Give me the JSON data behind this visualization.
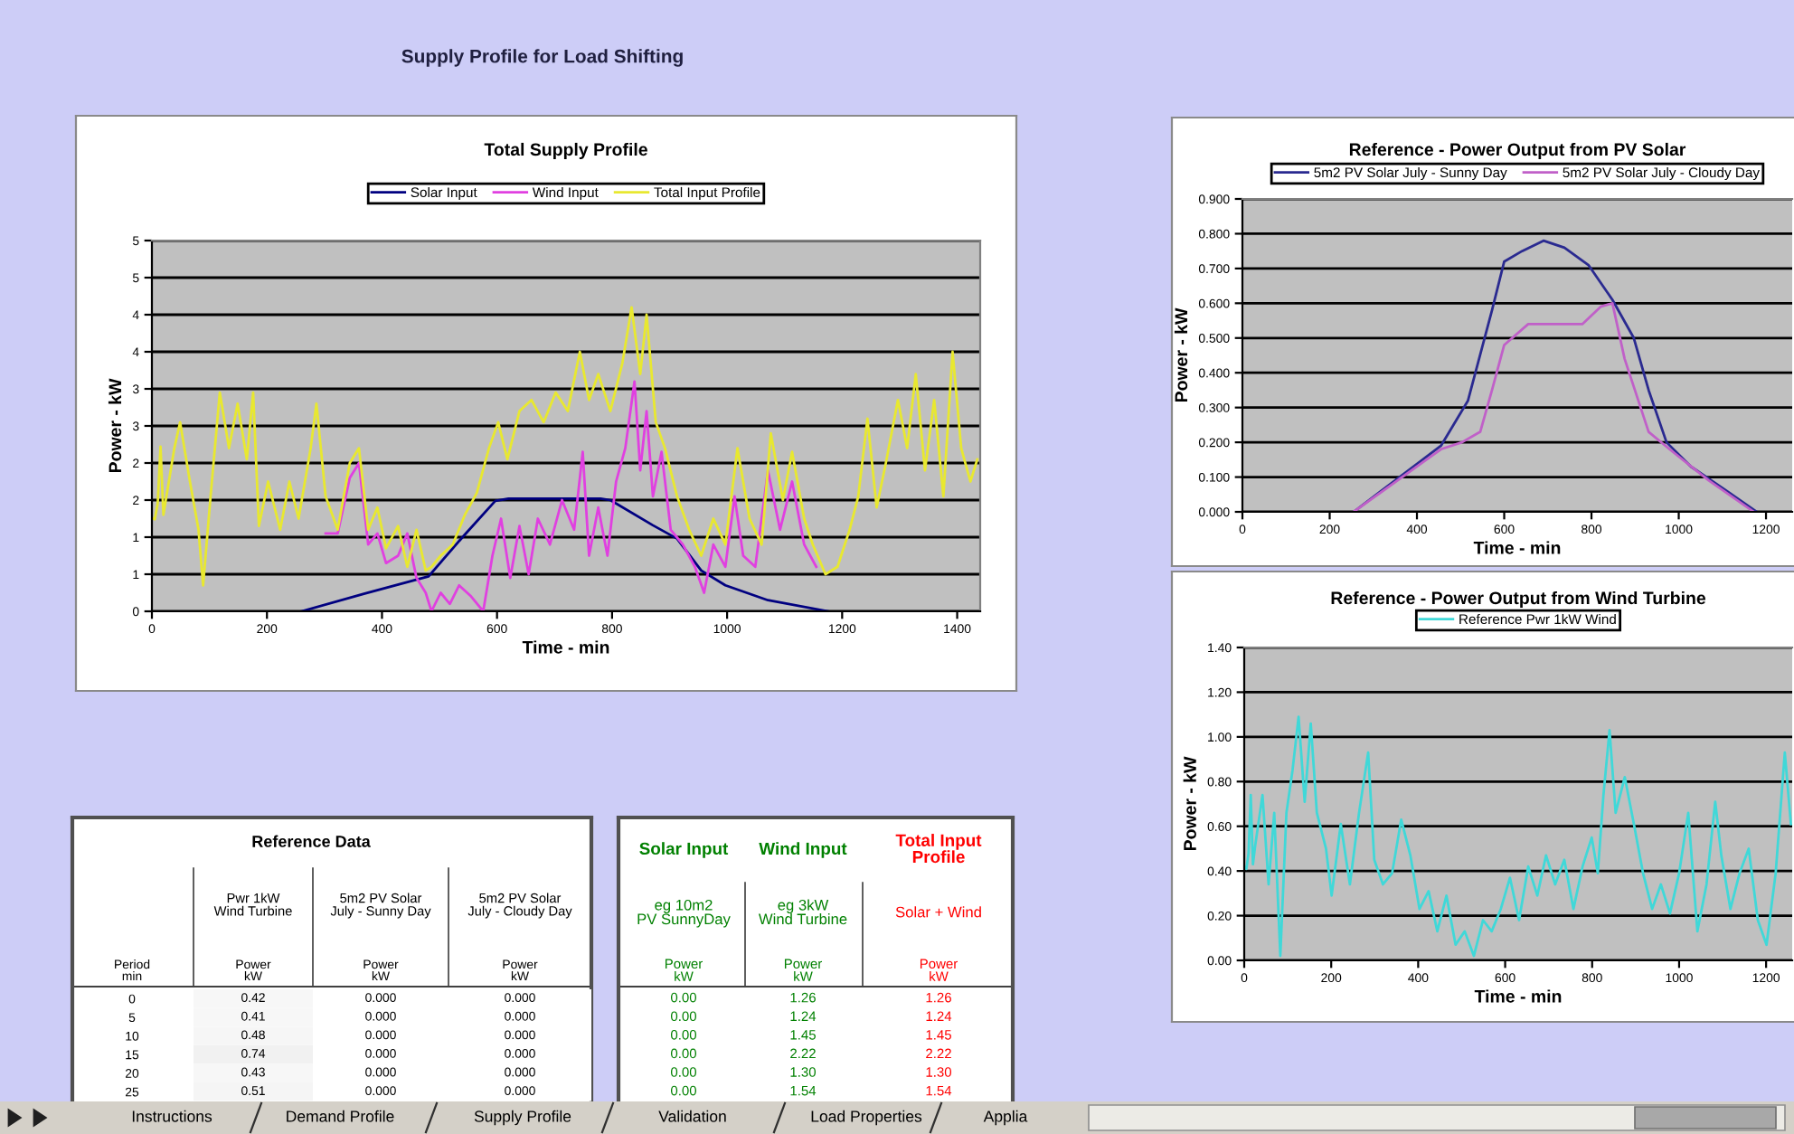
{
  "chart_data": [
    {
      "type": "other",
      "title": "Supply Profile for Load Shifting"
    },
    {
      "type": "line",
      "title": "Total Supply Profile",
      "xlabel": "Time - min",
      "ylabel": "Power - kW",
      "xlim": [
        0,
        1440
      ],
      "xticks": [
        0,
        200,
        400,
        600,
        800,
        1000,
        1200,
        1400
      ],
      "ylim": [
        0,
        5
      ],
      "yticks": [
        0,
        {
          "value": 0.5,
          "label": "1"
        },
        1,
        {
          "value": 1.5,
          "label": "2"
        },
        2,
        {
          "value": 2.5,
          "label": "3"
        },
        3,
        {
          "value": 3.5,
          "label": "4"
        },
        4,
        {
          "value": 4.5,
          "label": "5"
        },
        5
      ],
      "grid": "y",
      "legend": "top",
      "series": [
        {
          "name": "Solar Input",
          "color": "#000080",
          "x": [
            260,
            370,
            481,
            540,
            597,
            620,
            780,
            797,
            871,
            913,
            955,
            997,
            1071,
            1176
          ],
          "values": [
            0,
            0.24,
            0.47,
            1.0,
            1.49,
            1.52,
            1.52,
            1.5,
            1.16,
            0.98,
            0.55,
            0.35,
            0.15,
            0
          ]
        },
        {
          "name": "Wind Input",
          "color": "#e040e0",
          "x": [
            302,
            323,
            344,
            360,
            376,
            392,
            407,
            428,
            444,
            460,
            476,
            486,
            502,
            518,
            534,
            555,
            576,
            592,
            607,
            623,
            639,
            655,
            671,
            692,
            713,
            734,
            749,
            760,
            776,
            792,
            807,
            823,
            839,
            849,
            860,
            871,
            886,
            902,
            923,
            944,
            960,
            976,
            997,
            1013,
            1028,
            1049,
            1071,
            1092,
            1113,
            1134,
            1155
          ],
          "values": [
            1.05,
            1.05,
            1.8,
            2.0,
            0.9,
            1.05,
            0.65,
            0.75,
            1.05,
            0.45,
            0.25,
            0.0,
            0.25,
            0.1,
            0.35,
            0.2,
            0.0,
            0.75,
            1.25,
            0.45,
            1.15,
            0.5,
            1.25,
            0.9,
            1.5,
            1.1,
            2.15,
            0.75,
            1.4,
            0.75,
            1.75,
            2.2,
            3.1,
            1.9,
            2.7,
            1.55,
            2.15,
            1.1,
            0.9,
            0.6,
            0.25,
            0.9,
            0.6,
            1.55,
            0.75,
            0.6,
            1.9,
            1.1,
            1.75,
            0.9,
            0.6
          ]
        },
        {
          "name": "Total Input Profile",
          "color": "#e8e830",
          "x": [
            0,
            5,
            10,
            15,
            20,
            25,
            39,
            49,
            65,
            81,
            89,
            102,
            118,
            134,
            149,
            165,
            176,
            186,
            202,
            223,
            239,
            255,
            276,
            286,
            302,
            323,
            344,
            360,
            376,
            392,
            407,
            428,
            444,
            460,
            476,
            486,
            502,
            523,
            544,
            565,
            586,
            602,
            618,
            639,
            660,
            681,
            702,
            723,
            744,
            760,
            776,
            797,
            818,
            834,
            849,
            860,
            876,
            892,
            913,
            934,
            955,
            976,
            997,
            1018,
            1039,
            1060,
            1076,
            1097,
            1113,
            1134,
            1149,
            1171,
            1192,
            1213,
            1228,
            1244,
            1260,
            1276,
            1297,
            1313,
            1328,
            1344,
            1360,
            1376,
            1392,
            1407,
            1423,
            1435
          ],
          "values": [
            1.26,
            1.24,
            1.45,
            2.22,
            1.3,
            1.54,
            2.2,
            2.55,
            1.8,
            1.1,
            0.35,
            1.55,
            2.95,
            2.2,
            2.8,
            2.05,
            2.95,
            1.15,
            1.75,
            1.1,
            1.75,
            1.25,
            2.2,
            2.8,
            1.55,
            1.1,
            2.0,
            2.2,
            1.1,
            1.4,
            0.85,
            1.15,
            0.6,
            1.1,
            0.55,
            0.6,
            0.75,
            0.9,
            1.3,
            1.6,
            2.2,
            2.55,
            2.05,
            2.7,
            2.85,
            2.55,
            2.95,
            2.7,
            3.5,
            2.85,
            3.2,
            2.7,
            3.35,
            4.1,
            3.2,
            4.0,
            2.55,
            2.2,
            1.55,
            1.1,
            0.75,
            1.25,
            0.9,
            2.2,
            1.25,
            0.9,
            2.4,
            1.5,
            2.15,
            1.25,
            0.9,
            0.5,
            0.6,
            1.1,
            1.55,
            2.6,
            1.4,
            2.0,
            2.85,
            2.2,
            3.2,
            1.9,
            2.85,
            1.55,
            3.5,
            2.2,
            1.75,
            2.05
          ]
        }
      ]
    },
    {
      "type": "line",
      "title": "Reference - Power Output from PV Solar",
      "xlabel": "Time - min",
      "ylabel": "Power - kW",
      "xlim": [
        0,
        1260
      ],
      "xticks": [
        0,
        200,
        400,
        600,
        800,
        1000,
        1200
      ],
      "ylim": [
        0,
        0.9
      ],
      "yticks": [
        {
          "value": 0,
          "label": "0.000"
        },
        {
          "value": 0.1,
          "label": "0.100"
        },
        {
          "value": 0.2,
          "label": "0.200"
        },
        {
          "value": 0.3,
          "label": "0.300"
        },
        {
          "value": 0.4,
          "label": "0.400"
        },
        {
          "value": 0.5,
          "label": "0.500"
        },
        {
          "value": 0.6,
          "label": "0.600"
        },
        {
          "value": 0.7,
          "label": "0.700"
        },
        {
          "value": 0.8,
          "label": "0.800"
        },
        {
          "value": 0.9,
          "label": "0.900"
        }
      ],
      "grid": "y",
      "legend": "top",
      "series": [
        {
          "name": "5m2 PV Solar July - Sunny Day",
          "color": "#2a2a90",
          "x": [
            255,
            455,
            517,
            572,
            600,
            641,
            690,
            738,
            793,
            848,
            897,
            931,
            972,
            1028,
            1110,
            1179
          ],
          "values": [
            0,
            0.19,
            0.32,
            0.58,
            0.72,
            0.75,
            0.78,
            0.76,
            0.71,
            0.61,
            0.5,
            0.35,
            0.2,
            0.13,
            0.06,
            0
          ]
        },
        {
          "name": "5m2 PV Solar July - Cloudy Day",
          "color": "#c060c8",
          "x": [
            255,
            455,
            503,
            545,
            572,
            600,
            655,
            724,
            779,
            821,
            848,
            876,
            931,
            979,
            1069,
            1172
          ],
          "values": [
            0,
            0.18,
            0.2,
            0.23,
            0.35,
            0.48,
            0.54,
            0.54,
            0.54,
            0.59,
            0.6,
            0.44,
            0.23,
            0.18,
            0.09,
            0
          ]
        }
      ]
    },
    {
      "type": "line",
      "title": "Reference - Power Output from Wind Turbine",
      "xlabel": "Time - min",
      "ylabel": "Power - kW",
      "xlim": [
        0,
        1260
      ],
      "xticks": [
        0,
        200,
        400,
        600,
        800,
        1000,
        1200
      ],
      "ylim": [
        0,
        1.4
      ],
      "yticks": [
        {
          "value": 0,
          "label": "0.00"
        },
        {
          "value": 0.2,
          "label": "0.20"
        },
        {
          "value": 0.4,
          "label": "0.40"
        },
        {
          "value": 0.6,
          "label": "0.60"
        },
        {
          "value": 0.8,
          "label": "0.80"
        },
        {
          "value": 1.0,
          "label": "1.00"
        },
        {
          "value": 1.2,
          "label": "1.20"
        },
        {
          "value": 1.4,
          "label": "1.40"
        }
      ],
      "grid": "y",
      "legend": "top",
      "series": [
        {
          "name": "Reference Pwr 1kW Wind",
          "color": "#40d8d8",
          "x": [
            0,
            5,
            10,
            15,
            20,
            25,
            42,
            56,
            69,
            83,
            97,
            111,
            125,
            139,
            153,
            167,
            188,
            201,
            222,
            243,
            264,
            285,
            299,
            319,
            340,
            361,
            382,
            403,
            424,
            444,
            465,
            486,
            507,
            528,
            549,
            569,
            590,
            611,
            632,
            653,
            674,
            694,
            715,
            736,
            757,
            778,
            799,
            813,
            826,
            840,
            854,
            875,
            896,
            917,
            938,
            958,
            979,
            1000,
            1021,
            1042,
            1063,
            1083,
            1097,
            1118,
            1139,
            1160,
            1181,
            1201,
            1222,
            1243,
            1257
          ],
          "values": [
            0.42,
            0.41,
            0.48,
            0.74,
            0.43,
            0.51,
            0.74,
            0.34,
            0.66,
            0.02,
            0.66,
            0.85,
            1.09,
            0.71,
            1.06,
            0.66,
            0.5,
            0.29,
            0.61,
            0.34,
            0.66,
            0.93,
            0.45,
            0.34,
            0.39,
            0.63,
            0.47,
            0.23,
            0.31,
            0.13,
            0.29,
            0.07,
            0.13,
            0.02,
            0.18,
            0.13,
            0.23,
            0.37,
            0.18,
            0.42,
            0.29,
            0.47,
            0.34,
            0.45,
            0.23,
            0.42,
            0.55,
            0.39,
            0.74,
            1.03,
            0.66,
            0.82,
            0.61,
            0.39,
            0.23,
            0.34,
            0.21,
            0.39,
            0.66,
            0.13,
            0.34,
            0.71,
            0.47,
            0.23,
            0.39,
            0.5,
            0.18,
            0.07,
            0.39,
            0.93,
            0.61
          ]
        }
      ]
    },
    {
      "type": "heatmap",
      "title": "Reference Data",
      "ylabel": "Period\nmin",
      "categories": [
        "Pwr 1kW\nWind Turbine",
        "5m2 PV Solar\nJuly - Sunny Day",
        "5m2 PV Solar\nJuly - Cloudy Day"
      ],
      "y_categories": [
        "0",
        "5",
        "10",
        "15",
        "20",
        "25"
      ],
      "cells": [
        [
          0.42,
          0.0,
          0.0
        ],
        [
          0.41,
          0.0,
          0.0
        ],
        [
          0.48,
          0.0,
          0.0
        ],
        [
          0.74,
          0.0,
          0.0
        ],
        [
          0.43,
          0.0,
          0.0
        ],
        [
          0.51,
          0.0,
          0.0
        ]
      ],
      "cell_labels": [
        [
          "0.42",
          "0.000",
          "0.000"
        ],
        [
          "0.41",
          "0.000",
          "0.000"
        ],
        [
          "0.48",
          "0.000",
          "0.000"
        ],
        [
          "0.74",
          "0.000",
          "0.000"
        ],
        [
          "0.43",
          "0.000",
          "0.000"
        ],
        [
          "0.51",
          "0.000",
          "0.000"
        ]
      ],
      "annotations": [
        "Power\nkW",
        "Power\nkW",
        "Power\nkW"
      ]
    },
    {
      "type": "other",
      "categories": [
        "Solar Input",
        "Wind Input",
        "Total Input\nProfile"
      ],
      "annotations": [
        "eg 10m2\nPV SunnyDay",
        "eg 3kW\nWind Turbine",
        "Solar + Wind",
        "Power\nkW",
        "Power\nkW",
        "Power\nkW",
        "0.00",
        "1.26",
        "1.26",
        "0.00",
        "1.24",
        "1.24",
        "0.00",
        "1.45",
        "1.45",
        "0.00",
        "2.22",
        "2.22",
        "0.00",
        "1.30",
        "1.30",
        "0.00",
        "1.54",
        "1.54"
      ]
    },
    {
      "type": "other",
      "categories": [
        "Instructions",
        "Demand Profile",
        "Supply Profile",
        "Validation",
        "Load Properties",
        "Applia"
      ]
    }
  ]
}
